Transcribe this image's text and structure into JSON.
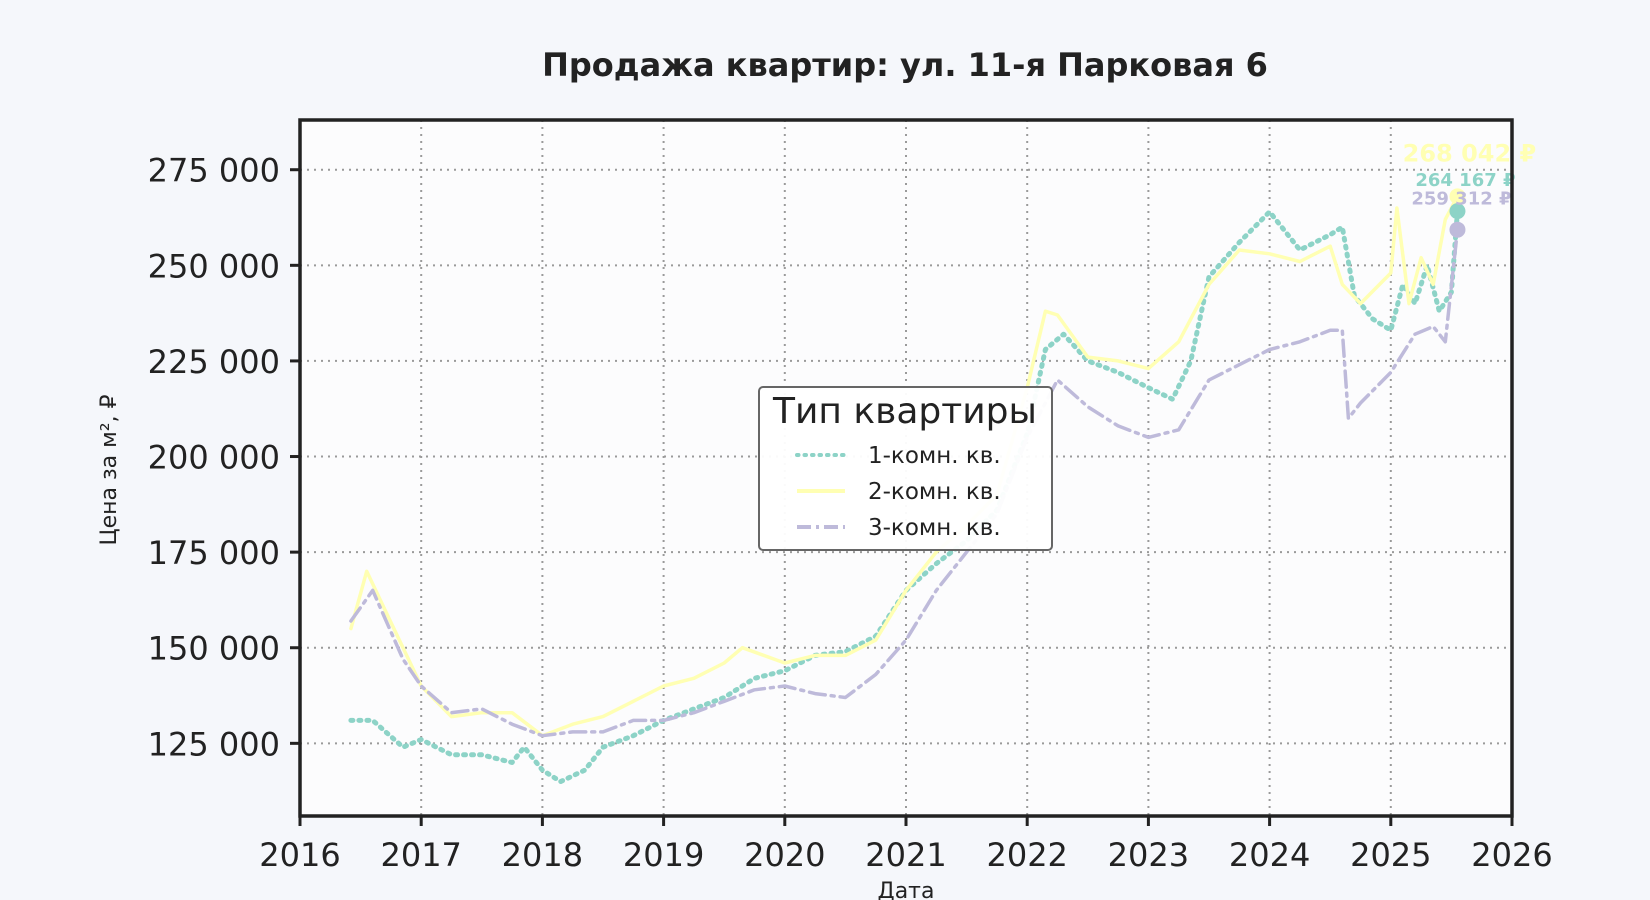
{
  "chart_data": {
    "type": "line",
    "title": "Продажа квартир: ул. 11-я Парковая 6",
    "xlabel": "Дата",
    "ylabel": "Цена за м², ₽",
    "xlim": [
      2016,
      2026
    ],
    "ylim": [
      106000,
      288000
    ],
    "x_ticks": [
      2016,
      2017,
      2018,
      2019,
      2020,
      2021,
      2022,
      2023,
      2024,
      2025,
      2026
    ],
    "x_tick_labels": [
      "2016",
      "2017",
      "2018",
      "2019",
      "2020",
      "2021",
      "2022",
      "2023",
      "2024",
      "2025",
      "2026"
    ],
    "y_ticks": [
      125000,
      150000,
      175000,
      200000,
      225000,
      250000,
      275000
    ],
    "y_tick_labels": [
      "125 000",
      "150 000",
      "175 000",
      "200 000",
      "225 000",
      "250 000",
      "275 000"
    ],
    "grid": true,
    "legend": {
      "title": "Тип квартиры",
      "placement": "center"
    },
    "series": [
      {
        "name": "1-комн. кв.",
        "style": "dotted",
        "color": "#8dd3c7",
        "x": [
          2016.42,
          2016.6,
          2016.85,
          2017.0,
          2017.25,
          2017.5,
          2017.75,
          2017.85,
          2018.0,
          2018.15,
          2018.35,
          2018.5,
          2018.75,
          2019.0,
          2019.25,
          2019.5,
          2019.75,
          2020.0,
          2020.25,
          2020.5,
          2020.75,
          2021.0,
          2021.25,
          2021.5,
          2021.75,
          2022.0,
          2022.15,
          2022.3,
          2022.5,
          2022.75,
          2023.0,
          2023.2,
          2023.35,
          2023.5,
          2023.75,
          2024.0,
          2024.25,
          2024.5,
          2024.6,
          2024.7,
          2024.85,
          2025.0,
          2025.1,
          2025.2,
          2025.3,
          2025.4,
          2025.5,
          2025.55
        ],
        "values": [
          131000,
          131000,
          124000,
          126000,
          122000,
          122000,
          120000,
          124000,
          118000,
          115000,
          118000,
          124000,
          127000,
          131000,
          134000,
          137000,
          142000,
          144000,
          148000,
          149000,
          153000,
          165000,
          172000,
          178000,
          186000,
          206000,
          228000,
          232000,
          225000,
          222000,
          218000,
          215000,
          225000,
          247000,
          256000,
          264000,
          254000,
          258000,
          260000,
          242000,
          236000,
          233000,
          245000,
          240000,
          250000,
          238000,
          243000,
          264167
        ]
      },
      {
        "name": "2-комн. кв.",
        "style": "solid",
        "color": "#ffffb3",
        "x": [
          2016.42,
          2016.55,
          2016.7,
          2017.0,
          2017.25,
          2017.5,
          2017.75,
          2018.0,
          2018.25,
          2018.5,
          2018.75,
          2019.0,
          2019.25,
          2019.5,
          2019.65,
          2020.0,
          2020.25,
          2020.5,
          2020.75,
          2021.0,
          2021.25,
          2021.5,
          2021.75,
          2022.0,
          2022.15,
          2022.25,
          2022.5,
          2022.75,
          2023.0,
          2023.25,
          2023.5,
          2023.75,
          2024.0,
          2024.25,
          2024.5,
          2024.6,
          2024.75,
          2025.0,
          2025.05,
          2025.15,
          2025.25,
          2025.35,
          2025.45,
          2025.55
        ],
        "values": [
          155000,
          170000,
          160000,
          140000,
          132000,
          133000,
          133000,
          127000,
          130000,
          132000,
          136000,
          140000,
          142000,
          146000,
          150000,
          146000,
          148000,
          148000,
          152000,
          165000,
          175000,
          182000,
          190000,
          218000,
          238000,
          237000,
          226000,
          225000,
          223000,
          230000,
          245000,
          254000,
          253000,
          251000,
          255000,
          245000,
          240000,
          248000,
          265000,
          240000,
          252000,
          245000,
          262000,
          268042
        ]
      },
      {
        "name": "3-комн. кв.",
        "style": "dashdot",
        "color": "#bebada",
        "x": [
          2016.42,
          2016.6,
          2016.85,
          2017.0,
          2017.25,
          2017.5,
          2017.75,
          2018.0,
          2018.25,
          2018.5,
          2018.75,
          2019.0,
          2019.25,
          2019.5,
          2019.75,
          2020.0,
          2020.25,
          2020.5,
          2020.75,
          2021.0,
          2021.25,
          2021.5,
          2021.75,
          2022.0,
          2022.25,
          2022.5,
          2022.75,
          2023.0,
          2023.25,
          2023.5,
          2023.75,
          2024.0,
          2024.25,
          2024.5,
          2024.6,
          2024.65,
          2024.75,
          2025.0,
          2025.2,
          2025.35,
          2025.45,
          2025.55
        ],
        "values": [
          157000,
          165000,
          147000,
          140000,
          133000,
          134000,
          130000,
          127000,
          128000,
          128000,
          131000,
          131000,
          133000,
          136000,
          139000,
          140000,
          138000,
          137000,
          143000,
          152000,
          165000,
          175000,
          185000,
          205000,
          220000,
          213000,
          208000,
          205000,
          207000,
          220000,
          224000,
          228000,
          230000,
          233000,
          233000,
          210000,
          214000,
          222000,
          232000,
          234000,
          230000,
          259312
        ]
      }
    ],
    "annotations": [
      {
        "series": "2-комн. кв.",
        "x": 2025.55,
        "y": 268042,
        "label": "268 042 ₽",
        "color": "#ffffb3"
      },
      {
        "series": "1-комн. кв.",
        "x": 2025.55,
        "y": 264167,
        "label": "264 167 ₽",
        "color": "#8dd3c7"
      },
      {
        "series": "3-комн. кв.",
        "x": 2025.55,
        "y": 259312,
        "label": "259 312 ₽",
        "color": "#bebada"
      }
    ]
  }
}
